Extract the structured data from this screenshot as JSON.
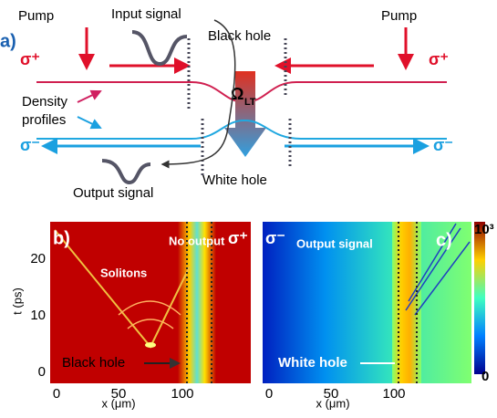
{
  "panel_a": {
    "label": "a)",
    "pump_left": "Pump",
    "pump_right": "Pump",
    "input_signal": "Input signal",
    "black_hole": "Black hole",
    "sigma_plus": "σ⁺",
    "sigma_minus": "σ⁻",
    "density_profiles": [
      "Density",
      "profiles"
    ],
    "omega": "Ω",
    "omega_sub": "LT",
    "white_hole": "White hole",
    "output_signal": "Output signal"
  },
  "panel_b": {
    "label": "b)",
    "sigma": "σ⁺",
    "no_output": "No output",
    "solitons": "Solitons",
    "black_hole": "Black hole",
    "x_label": "x (μm)",
    "y_label": "t (ps)",
    "x_ticks": [
      0,
      50,
      100
    ],
    "y_ticks": [
      0,
      10,
      20
    ]
  },
  "panel_c": {
    "label": "c)",
    "sigma": "σ⁻",
    "output_signal": "Output signal",
    "white_hole": "White hole",
    "x_label": "x (μm)",
    "x_ticks": [
      0,
      50,
      100
    ],
    "colorbar_ticks": [
      {
        "value": 0,
        "label": "0"
      },
      {
        "value": 1000,
        "label": "10³"
      }
    ]
  }
}
